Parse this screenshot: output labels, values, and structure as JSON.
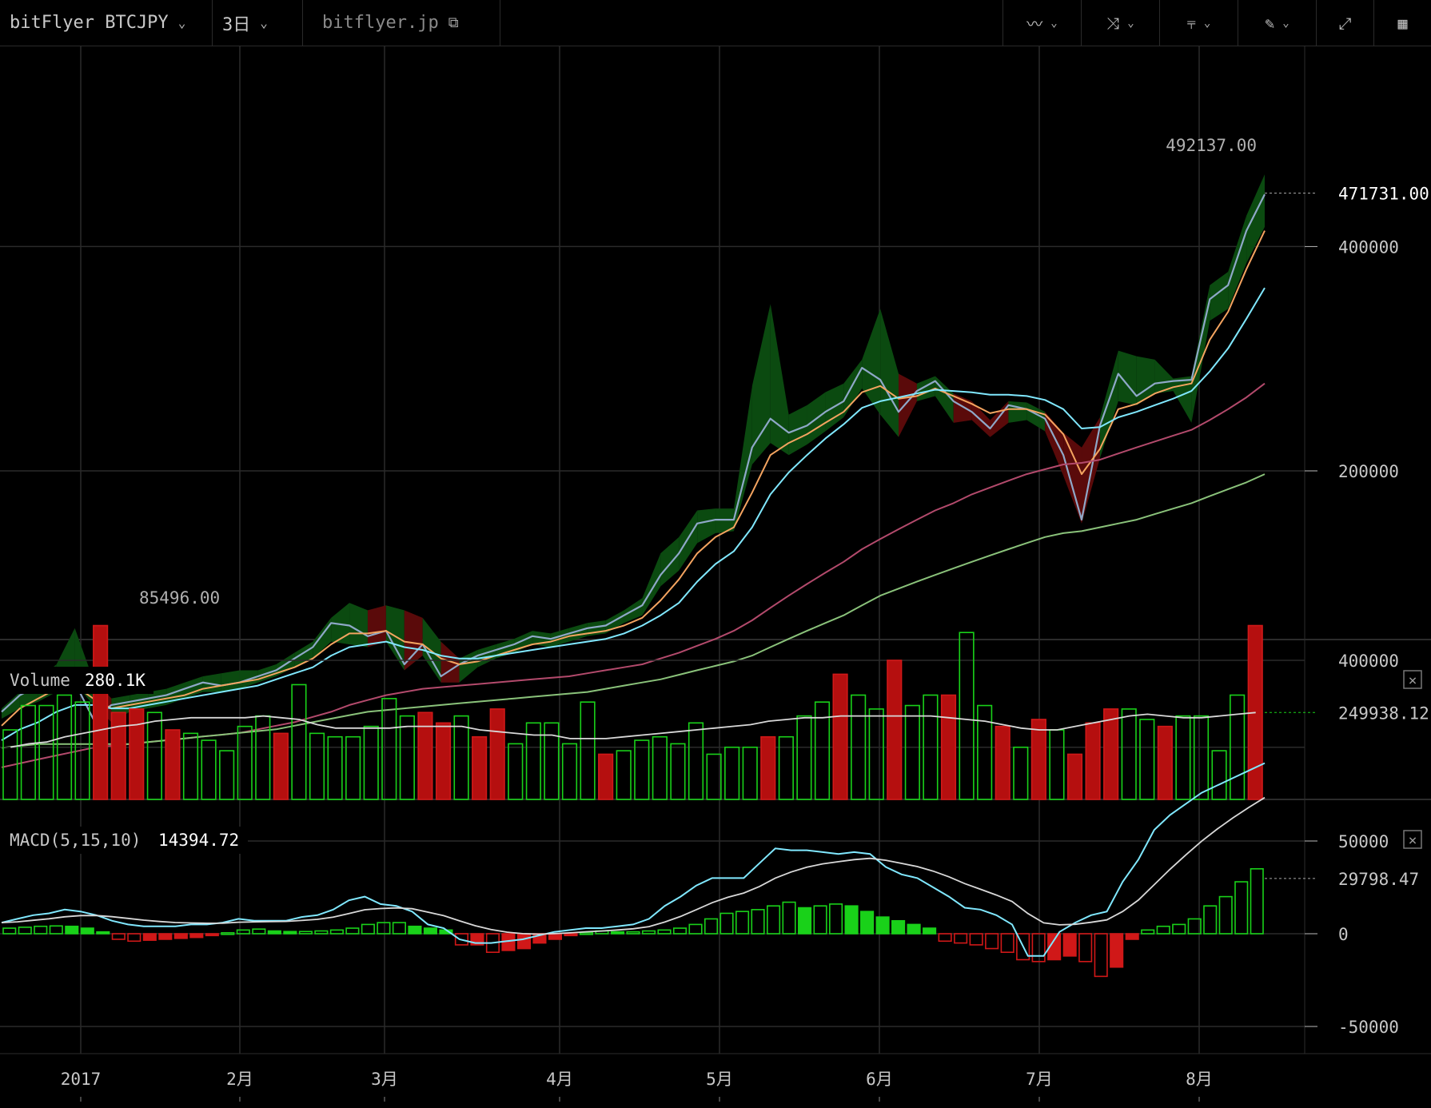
{
  "toolbar": {
    "symbol": "bitFlyer BTCJPY",
    "interval": "3日",
    "source": "bitflyer.jp",
    "icons": [
      "line-style-icon",
      "indicator-icon",
      "candle-type-icon",
      "draw-pencil-icon",
      "fullscreen-icon",
      "screenshot-icon"
    ]
  },
  "chart_data": [
    {
      "type": "line",
      "panel": "price",
      "y_scale": "log",
      "y_ticks": [
        {
          "value": 400000,
          "label": "400000"
        },
        {
          "value": 200000,
          "label": "200000"
        }
      ],
      "last_price": "471731.00",
      "high_label": "492137.00",
      "low_label": "85496.00",
      "x_labels": [
        "2017",
        "2月",
        "3月",
        "4月",
        "5月",
        "6月",
        "7月",
        "8月"
      ],
      "grid": true,
      "series": [
        {
          "color": "#8fa8c8",
          "values": [
            95000,
            100000,
            103000,
            108000,
            104000,
            93000,
            97000,
            98000,
            99000,
            100000,
            102000,
            104000,
            103000,
            104000,
            106000,
            108000,
            112000,
            116000,
            125000,
            124000,
            120000,
            122000,
            110000,
            117000,
            106000,
            110000,
            113000,
            115000,
            117000,
            120000,
            119000,
            121000,
            123000,
            124000,
            128000,
            132000,
            145000,
            155000,
            170000,
            172000,
            172000,
            215000,
            235000,
            225000,
            230000,
            240000,
            248000,
            275000,
            265000,
            240000,
            256000,
            264000,
            248000,
            240000,
            228000,
            245000,
            242000,
            235000,
            210000,
            172000,
            230000,
            270000,
            252000,
            262000,
            264000,
            265000,
            340000,
            355000,
            420000,
            470000
          ]
        },
        {
          "color": "#f4a460",
          "values": [
            91000,
            96000,
            99000,
            102000,
            103000,
            99000,
            96000,
            97000,
            98000,
            99000,
            100000,
            102000,
            103000,
            104000,
            105000,
            107000,
            109000,
            112000,
            117000,
            121000,
            121000,
            122000,
            118000,
            117000,
            112000,
            110000,
            111000,
            113000,
            115000,
            117000,
            118000,
            120000,
            121000,
            122000,
            124000,
            127000,
            134000,
            143000,
            155000,
            163000,
            168000,
            187000,
            210000,
            218000,
            224000,
            232000,
            240000,
            255000,
            260000,
            250000,
            252000,
            258000,
            252000,
            246000,
            239000,
            242000,
            242000,
            238000,
            224000,
            198000,
            214000,
            242000,
            246000,
            254000,
            259000,
            262000,
            300000,
            327000,
            373000,
            420000
          ]
        },
        {
          "color": "#80e8ff",
          "values": [
            87000,
            90000,
            92000,
            95000,
            97000,
            97000,
            96000,
            96000,
            97000,
            98000,
            99000,
            100000,
            101000,
            102000,
            103000,
            105000,
            107000,
            109000,
            113000,
            116000,
            117000,
            118000,
            116000,
            115000,
            113000,
            112000,
            112000,
            113000,
            114000,
            115000,
            116000,
            117000,
            118000,
            119000,
            121000,
            124000,
            128000,
            133000,
            142000,
            150000,
            156000,
            168000,
            186000,
            199000,
            210000,
            221000,
            231000,
            243000,
            248000,
            251000,
            254000,
            257000,
            256000,
            255000,
            253000,
            253000,
            252000,
            249000,
            242000,
            228000,
            229000,
            236000,
            240000,
            245000,
            250000,
            256000,
            272000,
            292000,
            320000,
            352000
          ]
        },
        {
          "color": "#b34a6c",
          "values": [
            80000,
            81000,
            82000,
            83000,
            84000,
            85000,
            85500,
            86000,
            86500,
            87000,
            87500,
            88000,
            88500,
            89000,
            90000,
            91000,
            92000,
            93500,
            95000,
            97000,
            98500,
            100000,
            101000,
            102000,
            102500,
            103000,
            103500,
            104000,
            104500,
            105000,
            105500,
            106000,
            107000,
            108000,
            109000,
            110000,
            112000,
            114000,
            116500,
            119000,
            122000,
            126000,
            131000,
            136000,
            141000,
            146000,
            151000,
            157000,
            162000,
            167000,
            172000,
            177000,
            181000,
            186000,
            190000,
            194000,
            198000,
            201000,
            204000,
            205000,
            207000,
            211000,
            215000,
            219000,
            223000,
            227000,
            234000,
            242000,
            251000,
            262000
          ]
        },
        {
          "color": "#8ac27a",
          "values": [
            85000,
            85500,
            86000,
            86000,
            86000,
            86000,
            86000,
            86000,
            86500,
            87000,
            87500,
            88000,
            88500,
            89000,
            89500,
            90000,
            91000,
            92000,
            93000,
            94000,
            95000,
            95500,
            96000,
            96500,
            97000,
            97500,
            98000,
            98500,
            99000,
            99500,
            100000,
            100500,
            101000,
            102000,
            103000,
            104000,
            105000,
            106500,
            108000,
            109500,
            111000,
            113000,
            116000,
            119000,
            122000,
            125000,
            128000,
            132000,
            136000,
            139000,
            142000,
            145000,
            148000,
            151000,
            154000,
            157000,
            160000,
            163000,
            165000,
            166000,
            168000,
            170000,
            172000,
            175000,
            178000,
            181000,
            185000,
            189000,
            193000,
            198000
          ]
        }
      ],
      "ribbon_upper": [
        96000,
        101000,
        105000,
        110000,
        123000,
        105000,
        99000,
        100000,
        101000,
        102000,
        104000,
        106000,
        107000,
        108000,
        108000,
        110000,
        114000,
        118000,
        127000,
        133000,
        130000,
        132000,
        130000,
        127000,
        118000,
        112000,
        115000,
        117000,
        119000,
        122000,
        121000,
        123000,
        125000,
        126000,
        130000,
        135000,
        155000,
        163000,
        177000,
        178000,
        178000,
        260000,
        335000,
        238000,
        245000,
        255000,
        262000,
        282000,
        330000,
        270000,
        262000,
        268000,
        254000,
        248000,
        234000,
        248000,
        247000,
        240000,
        225000,
        215000,
        236000,
        290000,
        285000,
        282000,
        266000,
        268000,
        355000,
        370000,
        440000,
        500000
      ],
      "ribbon_lower": [
        93000,
        96000,
        98000,
        101000,
        104000,
        97000,
        92000,
        95000,
        96000,
        97000,
        99000,
        101000,
        101000,
        102000,
        104000,
        106000,
        109000,
        112000,
        118000,
        117000,
        116000,
        118000,
        108000,
        113000,
        104000,
        104000,
        109000,
        112000,
        114000,
        117000,
        116000,
        118000,
        120000,
        121000,
        125000,
        128000,
        140000,
        147000,
        160000,
        165000,
        166000,
        204000,
        218000,
        210000,
        217000,
        226000,
        236000,
        258000,
        238000,
        222000,
        248000,
        252000,
        232000,
        234000,
        222000,
        232000,
        234000,
        226000,
        197000,
        170000,
        208000,
        248000,
        245000,
        254000,
        256000,
        232000,
        318000,
        330000,
        380000,
        425000
      ]
    },
    {
      "type": "bar",
      "panel": "volume",
      "title": "Volume",
      "current": "280.1K",
      "last_label": "249938.12",
      "y_ticks": [
        {
          "value": 400000,
          "label": "400000"
        }
      ],
      "values": [
        200000,
        270000,
        270000,
        300000,
        280000,
        500000,
        250000,
        260000,
        250000,
        200000,
        190000,
        170000,
        140000,
        210000,
        240000,
        190000,
        330000,
        190000,
        180000,
        180000,
        210000,
        290000,
        240000,
        250000,
        220000,
        240000,
        180000,
        260000,
        160000,
        220000,
        220000,
        160000,
        280000,
        130000,
        140000,
        170000,
        180000,
        160000,
        220000,
        130000,
        150000,
        150000,
        180000,
        180000,
        240000,
        280000,
        360000,
        300000,
        260000,
        400000,
        270000,
        300000,
        300000,
        480000,
        270000,
        210000,
        150000,
        230000,
        200000,
        130000,
        220000,
        260000,
        260000,
        230000,
        210000,
        240000,
        240000,
        140000,
        300000,
        500000
      ],
      "colors": [
        "g",
        "g",
        "g",
        "g",
        "g",
        "r",
        "r",
        "r",
        "g",
        "r",
        "g",
        "g",
        "g",
        "g",
        "g",
        "r",
        "g",
        "g",
        "g",
        "g",
        "g",
        "g",
        "g",
        "r",
        "r",
        "g",
        "r",
        "r",
        "g",
        "g",
        "g",
        "g",
        "g",
        "r",
        "g",
        "g",
        "g",
        "g",
        "g",
        "g",
        "g",
        "g",
        "r",
        "g",
        "g",
        "g",
        "r",
        "g",
        "g",
        "r",
        "g",
        "g",
        "r",
        "g",
        "g",
        "r",
        "g",
        "r",
        "g",
        "r",
        "r",
        "r",
        "g",
        "g",
        "r",
        "g",
        "g",
        "g",
        "g",
        "r"
      ],
      "ma": [
        150000,
        160000,
        165000,
        180000,
        190000,
        200000,
        210000,
        215000,
        225000,
        230000,
        235000,
        235000,
        235000,
        235000,
        240000,
        235000,
        230000,
        215000,
        205000,
        205000,
        205000,
        205000,
        210000,
        210000,
        210000,
        210000,
        200000,
        195000,
        190000,
        185000,
        185000,
        175000,
        175000,
        175000,
        180000,
        185000,
        190000,
        195000,
        200000,
        205000,
        210000,
        215000,
        225000,
        230000,
        235000,
        235000,
        240000,
        240000,
        240000,
        240000,
        240000,
        240000,
        235000,
        230000,
        225000,
        215000,
        205000,
        200000,
        200000,
        210000,
        220000,
        230000,
        240000,
        245000,
        240000,
        235000,
        235000,
        240000,
        245000,
        250000
      ]
    },
    {
      "type": "bar",
      "panel": "macd",
      "title": "MACD(5,15,10)",
      "current": "14394.72",
      "last_label": "29798.47",
      "y_ticks": [
        {
          "value": 50000,
          "label": "50000"
        },
        {
          "value": 0,
          "label": "0"
        },
        {
          "value": -50000,
          "label": "-50000"
        }
      ],
      "histogram": [
        3000,
        3500,
        4000,
        4200,
        4000,
        3000,
        1000,
        -3000,
        -4000,
        -3500,
        -3000,
        -2500,
        -2000,
        -1000,
        500,
        2000,
        2500,
        1500,
        1200,
        1200,
        1500,
        2000,
        3000,
        5000,
        6000,
        6000,
        4000,
        3000,
        2000,
        -6000,
        -6000,
        -10000,
        -9000,
        -8000,
        -5000,
        -3000,
        -1000,
        500,
        1500,
        1000,
        1000,
        1500,
        2000,
        3000,
        5000,
        8000,
        11000,
        12000,
        13000,
        15000,
        17000,
        14000,
        15000,
        16000,
        15000,
        12000,
        9000,
        7000,
        5000,
        3000,
        -4000,
        -5000,
        -6000,
        -8000,
        -10000,
        -14000,
        -15000,
        -14000,
        -12000,
        -15000,
        -23000,
        -18000,
        -3000,
        2000,
        4000,
        5000,
        8000,
        15000,
        20000,
        28000,
        35000
      ],
      "macd": [
        6000,
        8000,
        10000,
        11000,
        13000,
        12000,
        10000,
        7000,
        5000,
        4000,
        4000,
        4000,
        5000,
        5000,
        6000,
        8000,
        7000,
        7000,
        7000,
        9000,
        10000,
        13000,
        18000,
        20000,
        16000,
        15000,
        12000,
        5000,
        3000,
        -3000,
        -5000,
        -5000,
        -4000,
        -3000,
        -1000,
        1000,
        2000,
        3000,
        3000,
        4000,
        5000,
        8000,
        15000,
        20000,
        26000,
        30000,
        30000,
        30000,
        38000,
        46000,
        45000,
        45000,
        44000,
        43000,
        44000,
        43000,
        36000,
        32000,
        30000,
        25000,
        20000,
        14000,
        13000,
        10000,
        5000,
        -12000,
        -12000,
        1000,
        6000,
        10000,
        12000,
        28000,
        40000,
        56000,
        64000,
        70000,
        76000,
        80000,
        84000,
        88000,
        92000
      ]
    }
  ]
}
